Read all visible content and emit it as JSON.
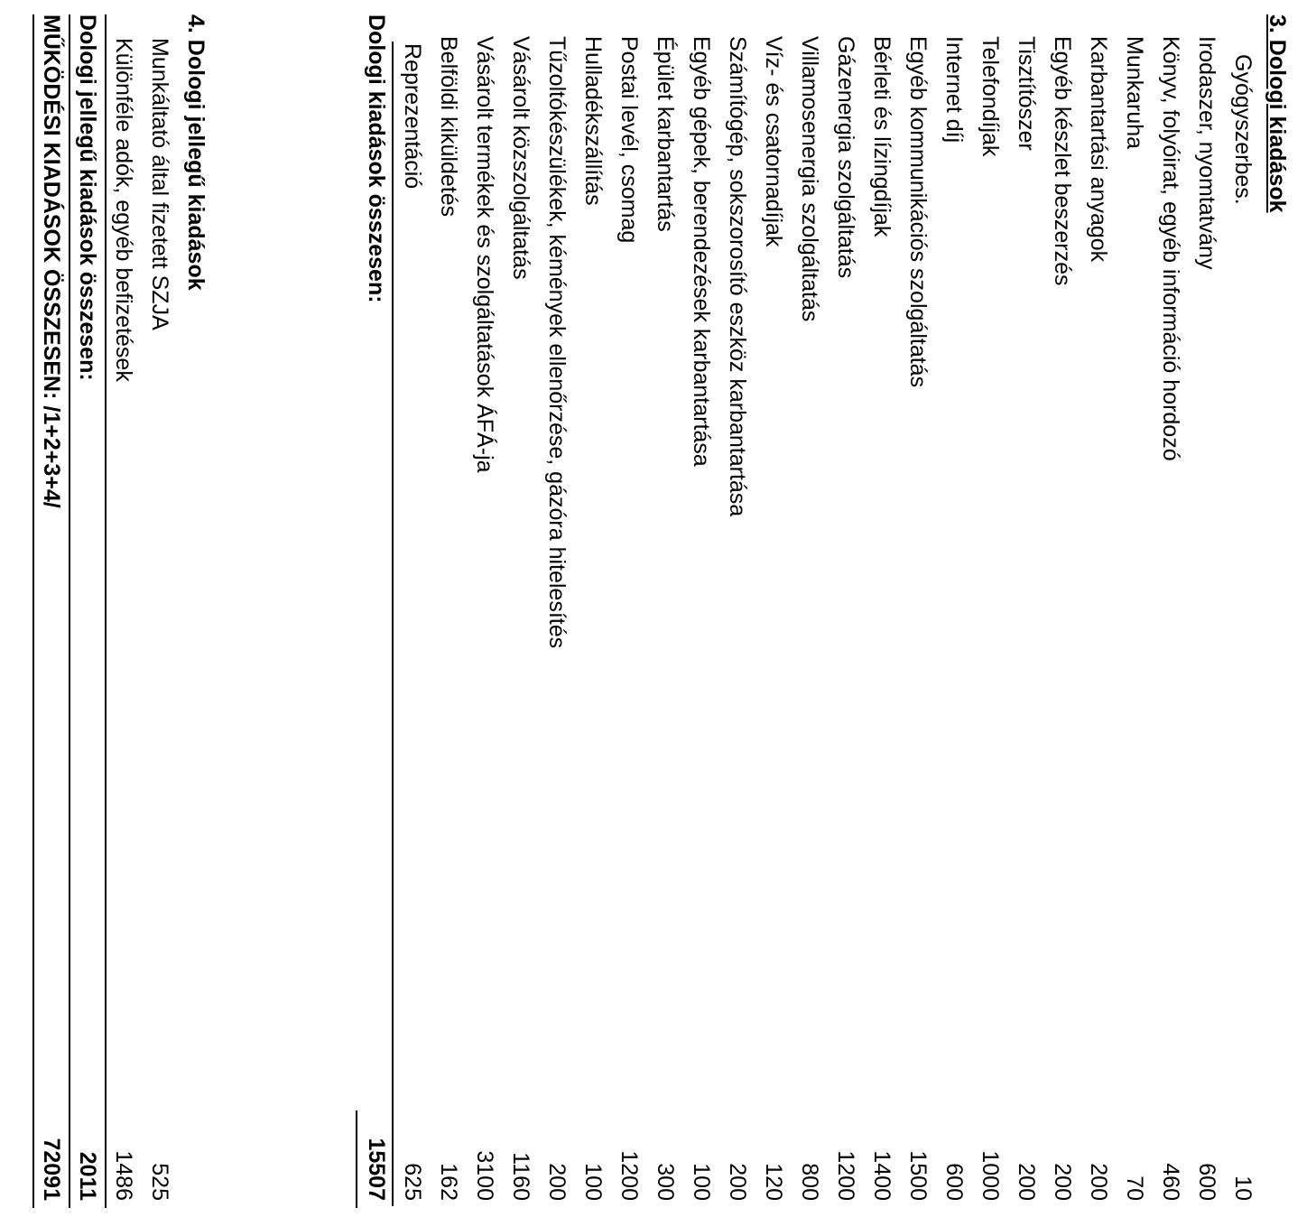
{
  "section3": {
    "title": "3. Dologi kiadások",
    "items": [
      {
        "label": "Gyógyszerbes.",
        "value": "10"
      },
      {
        "label": "Irodaszer, nyomtatvány",
        "value": "600"
      },
      {
        "label": "Könyv, folyóirat, egyéb információ hordozó",
        "value": "460"
      },
      {
        "label": "Munkaruha",
        "value": "70"
      },
      {
        "label": "Karbantartási anyagok",
        "value": "200"
      },
      {
        "label": "Egyéb készlet beszerzés",
        "value": "200"
      },
      {
        "label": "Tisztítószer",
        "value": "200"
      },
      {
        "label": "Telefondíjak",
        "value": "1000"
      },
      {
        "label": "Internet díj",
        "value": "600"
      },
      {
        "label": "Egyéb kommunikációs szolgáltatás",
        "value": "1500"
      },
      {
        "label": "Bérleti és lízingdíjak",
        "value": "1400"
      },
      {
        "label": "Gázenergia szolgáltatás",
        "value": "1200"
      },
      {
        "label": "Villamosenergia szolgáltatás",
        "value": "800"
      },
      {
        "label": "Víz- és csatornadíjak",
        "value": "120"
      },
      {
        "label": "Számítógép, sokszorosító eszköz karbantartása",
        "value": "200"
      },
      {
        "label": "Egyéb gépek, berendezések karbantartása",
        "value": "100"
      },
      {
        "label": "Épület karbantartás",
        "value": "300"
      },
      {
        "label": "Postai levél, csomag",
        "value": "1200"
      },
      {
        "label": "Hulladékszállítás",
        "value": "100"
      },
      {
        "label": "Tűzoltókészülékek, kémények ellenőrzése, gázóra hitelesítés",
        "value": "200"
      },
      {
        "label": "Vásárolt közszolgáltatás",
        "value": "1160"
      },
      {
        "label": "Vásárolt termékek és szolgáltatások ÁFÁ-ja",
        "value": "3100"
      },
      {
        "label": "Belföldi kiküldetés",
        "value": "162"
      },
      {
        "label": "Reprezentáció",
        "value": "625"
      }
    ],
    "total_label": "Dologi kiadások összesen:",
    "total_value": "15507"
  },
  "section4": {
    "title": "4. Dologi jellegű kiadások",
    "items": [
      {
        "label": "Munkáltató által fizetett SZJA",
        "value": "525"
      },
      {
        "label": "Különféle adók, egyéb befizetések",
        "value": "1486"
      }
    ],
    "total_label": "Dologi jellegű kiadások összesen:",
    "total_value": "2011"
  },
  "grand_total": {
    "label": "MŰKÖDÉSI KIADÁSOK ÖSSZESEN: /1+2+3+4/",
    "value": "72091"
  }
}
